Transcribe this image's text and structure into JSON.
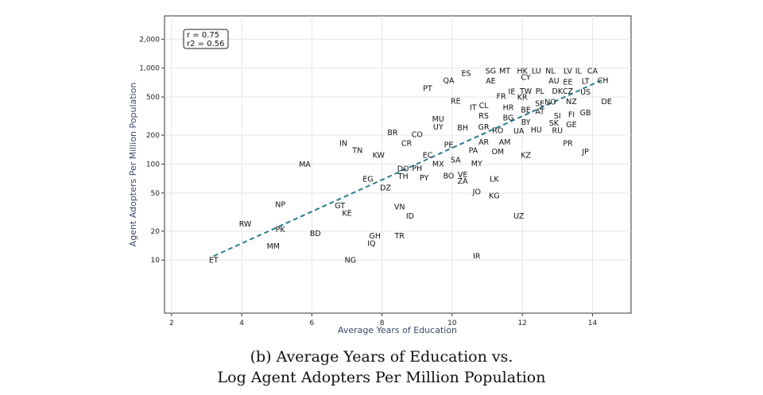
{
  "chart_data": {
    "type": "scatter",
    "xlabel": "Average Years of Education",
    "ylabel": "Agent Adopters Per Million Population",
    "xlim": [
      1.8,
      15.1
    ],
    "ylim": [
      2.8,
      3500
    ],
    "yscale": "log",
    "xticks": [
      2,
      4,
      6,
      8,
      10,
      12,
      14
    ],
    "yticks": [
      {
        "v": 10,
        "label": "10"
      },
      {
        "v": 20,
        "label": "20"
      },
      {
        "v": 50,
        "label": "50"
      },
      {
        "v": 100,
        "label": "100"
      },
      {
        "v": 200,
        "label": "200"
      },
      {
        "v": 500,
        "label": "500"
      },
      {
        "v": 1000,
        "label": "1,000"
      },
      {
        "v": 2000,
        "label": "2,000"
      }
    ],
    "grid": true,
    "annotation": [
      "r = 0.75",
      "r2 = 0.56"
    ],
    "trendline": {
      "x": [
        3.2,
        14.3
      ],
      "y": [
        11,
        760
      ],
      "color": "#2a7f8a",
      "style": "dashed"
    },
    "point_color": "#111111",
    "points": [
      {
        "label": "ET",
        "x": 3.2,
        "y": 10
      },
      {
        "label": "RW",
        "x": 4.1,
        "y": 24
      },
      {
        "label": "MM",
        "x": 4.9,
        "y": 14
      },
      {
        "label": "PK",
        "x": 5.1,
        "y": 21
      },
      {
        "label": "NP",
        "x": 5.1,
        "y": 38
      },
      {
        "label": "BD",
        "x": 6.1,
        "y": 19
      },
      {
        "label": "MA",
        "x": 5.8,
        "y": 100
      },
      {
        "label": "GT",
        "x": 6.8,
        "y": 37
      },
      {
        "label": "KE",
        "x": 7.0,
        "y": 31
      },
      {
        "label": "NG",
        "x": 7.1,
        "y": 10
      },
      {
        "label": "IN",
        "x": 6.9,
        "y": 165
      },
      {
        "label": "TN",
        "x": 7.3,
        "y": 140
      },
      {
        "label": "KW",
        "x": 7.9,
        "y": 125
      },
      {
        "label": "EG",
        "x": 7.6,
        "y": 70
      },
      {
        "label": "IQ",
        "x": 7.7,
        "y": 15
      },
      {
        "label": "GH",
        "x": 7.8,
        "y": 18
      },
      {
        "label": "DZ",
        "x": 8.1,
        "y": 57
      },
      {
        "label": "TR",
        "x": 8.5,
        "y": 18
      },
      {
        "label": "VN",
        "x": 8.5,
        "y": 36
      },
      {
        "label": "ID",
        "x": 8.8,
        "y": 29
      },
      {
        "label": "BR",
        "x": 8.3,
        "y": 215
      },
      {
        "label": "CR",
        "x": 8.7,
        "y": 165
      },
      {
        "label": "CO",
        "x": 9.0,
        "y": 205
      },
      {
        "label": "TH",
        "x": 8.6,
        "y": 75
      },
      {
        "label": "DO",
        "x": 8.6,
        "y": 90
      },
      {
        "label": "PH",
        "x": 9.0,
        "y": 91
      },
      {
        "label": "PY",
        "x": 9.2,
        "y": 72
      },
      {
        "label": "EC",
        "x": 9.3,
        "y": 125
      },
      {
        "label": "MX",
        "x": 9.6,
        "y": 101
      },
      {
        "label": "BO",
        "x": 9.9,
        "y": 76
      },
      {
        "label": "SA",
        "x": 10.1,
        "y": 111
      },
      {
        "label": "MY",
        "x": 10.7,
        "y": 102
      },
      {
        "label": "PE",
        "x": 9.9,
        "y": 160
      },
      {
        "label": "PA",
        "x": 10.6,
        "y": 140
      },
      {
        "label": "VE",
        "x": 10.3,
        "y": 78
      },
      {
        "label": "ZA",
        "x": 10.3,
        "y": 67
      },
      {
        "label": "JO",
        "x": 10.7,
        "y": 52
      },
      {
        "label": "KG",
        "x": 11.2,
        "y": 47
      },
      {
        "label": "LK",
        "x": 11.2,
        "y": 70
      },
      {
        "label": "UZ",
        "x": 11.9,
        "y": 29
      },
      {
        "label": "IR",
        "x": 10.7,
        "y": 11
      },
      {
        "label": "OM",
        "x": 11.3,
        "y": 135
      },
      {
        "label": "AR",
        "x": 10.9,
        "y": 170
      },
      {
        "label": "AM",
        "x": 11.5,
        "y": 170
      },
      {
        "label": "KZ",
        "x": 12.1,
        "y": 125
      },
      {
        "label": "RO",
        "x": 11.3,
        "y": 225
      },
      {
        "label": "UA",
        "x": 11.9,
        "y": 222
      },
      {
        "label": "HU",
        "x": 12.4,
        "y": 228
      },
      {
        "label": "RU",
        "x": 13.0,
        "y": 225
      },
      {
        "label": "PR",
        "x": 13.3,
        "y": 165
      },
      {
        "label": "JP",
        "x": 13.8,
        "y": 135
      },
      {
        "label": "UY",
        "x": 9.6,
        "y": 245
      },
      {
        "label": "MU",
        "x": 9.6,
        "y": 295
      },
      {
        "label": "BH",
        "x": 10.3,
        "y": 240
      },
      {
        "label": "GR",
        "x": 10.9,
        "y": 245
      },
      {
        "label": "RS",
        "x": 10.9,
        "y": 320
      },
      {
        "label": "BG",
        "x": 11.6,
        "y": 305
      },
      {
        "label": "BY",
        "x": 12.1,
        "y": 275
      },
      {
        "label": "SK",
        "x": 12.9,
        "y": 270
      },
      {
        "label": "GE",
        "x": 13.4,
        "y": 260
      },
      {
        "label": "SI",
        "x": 13.0,
        "y": 320
      },
      {
        "label": "FI",
        "x": 13.4,
        "y": 330
      },
      {
        "label": "GB",
        "x": 13.8,
        "y": 345
      },
      {
        "label": "BE",
        "x": 12.1,
        "y": 370
      },
      {
        "label": "AT",
        "x": 12.5,
        "y": 355
      },
      {
        "label": "IT",
        "x": 10.6,
        "y": 390
      },
      {
        "label": "CL",
        "x": 10.9,
        "y": 410
      },
      {
        "label": "HR",
        "x": 11.6,
        "y": 390
      },
      {
        "label": "SE",
        "x": 12.5,
        "y": 430
      },
      {
        "label": "NO",
        "x": 12.8,
        "y": 445
      },
      {
        "label": "NZ",
        "x": 13.4,
        "y": 450
      },
      {
        "label": "DE",
        "x": 14.4,
        "y": 450
      },
      {
        "label": "RE",
        "x": 10.1,
        "y": 455
      },
      {
        "label": "FR",
        "x": 11.4,
        "y": 510
      },
      {
        "label": "KR",
        "x": 12.0,
        "y": 500
      },
      {
        "label": "IE",
        "x": 11.7,
        "y": 570
      },
      {
        "label": "TW",
        "x": 12.1,
        "y": 580
      },
      {
        "label": "PL",
        "x": 12.5,
        "y": 580
      },
      {
        "label": "DK",
        "x": 13.0,
        "y": 575
      },
      {
        "label": "CZ",
        "x": 13.3,
        "y": 575
      },
      {
        "label": "US",
        "x": 13.8,
        "y": 565
      },
      {
        "label": "PT",
        "x": 9.3,
        "y": 620
      },
      {
        "label": "QA",
        "x": 9.9,
        "y": 745
      },
      {
        "label": "AE",
        "x": 11.1,
        "y": 740
      },
      {
        "label": "AU",
        "x": 12.9,
        "y": 740
      },
      {
        "label": "EE",
        "x": 13.3,
        "y": 720
      },
      {
        "label": "LT",
        "x": 13.8,
        "y": 730
      },
      {
        "label": "ES",
        "x": 10.4,
        "y": 890
      },
      {
        "label": "CY",
        "x": 12.1,
        "y": 810
      },
      {
        "label": "CH",
        "x": 14.3,
        "y": 750
      },
      {
        "label": "SG",
        "x": 11.1,
        "y": 940
      },
      {
        "label": "MT",
        "x": 11.5,
        "y": 940
      },
      {
        "label": "HK",
        "x": 12.0,
        "y": 935
      },
      {
        "label": "LU",
        "x": 12.4,
        "y": 940
      },
      {
        "label": "NL",
        "x": 12.8,
        "y": 940
      },
      {
        "label": "LV",
        "x": 13.3,
        "y": 940
      },
      {
        "label": "IL",
        "x": 13.6,
        "y": 940
      },
      {
        "label": "CA",
        "x": 14.0,
        "y": 935
      }
    ]
  },
  "caption": {
    "line1": "(b) Average Years of Education vs.",
    "line2": "Log Agent Adopters Per Million Population"
  }
}
